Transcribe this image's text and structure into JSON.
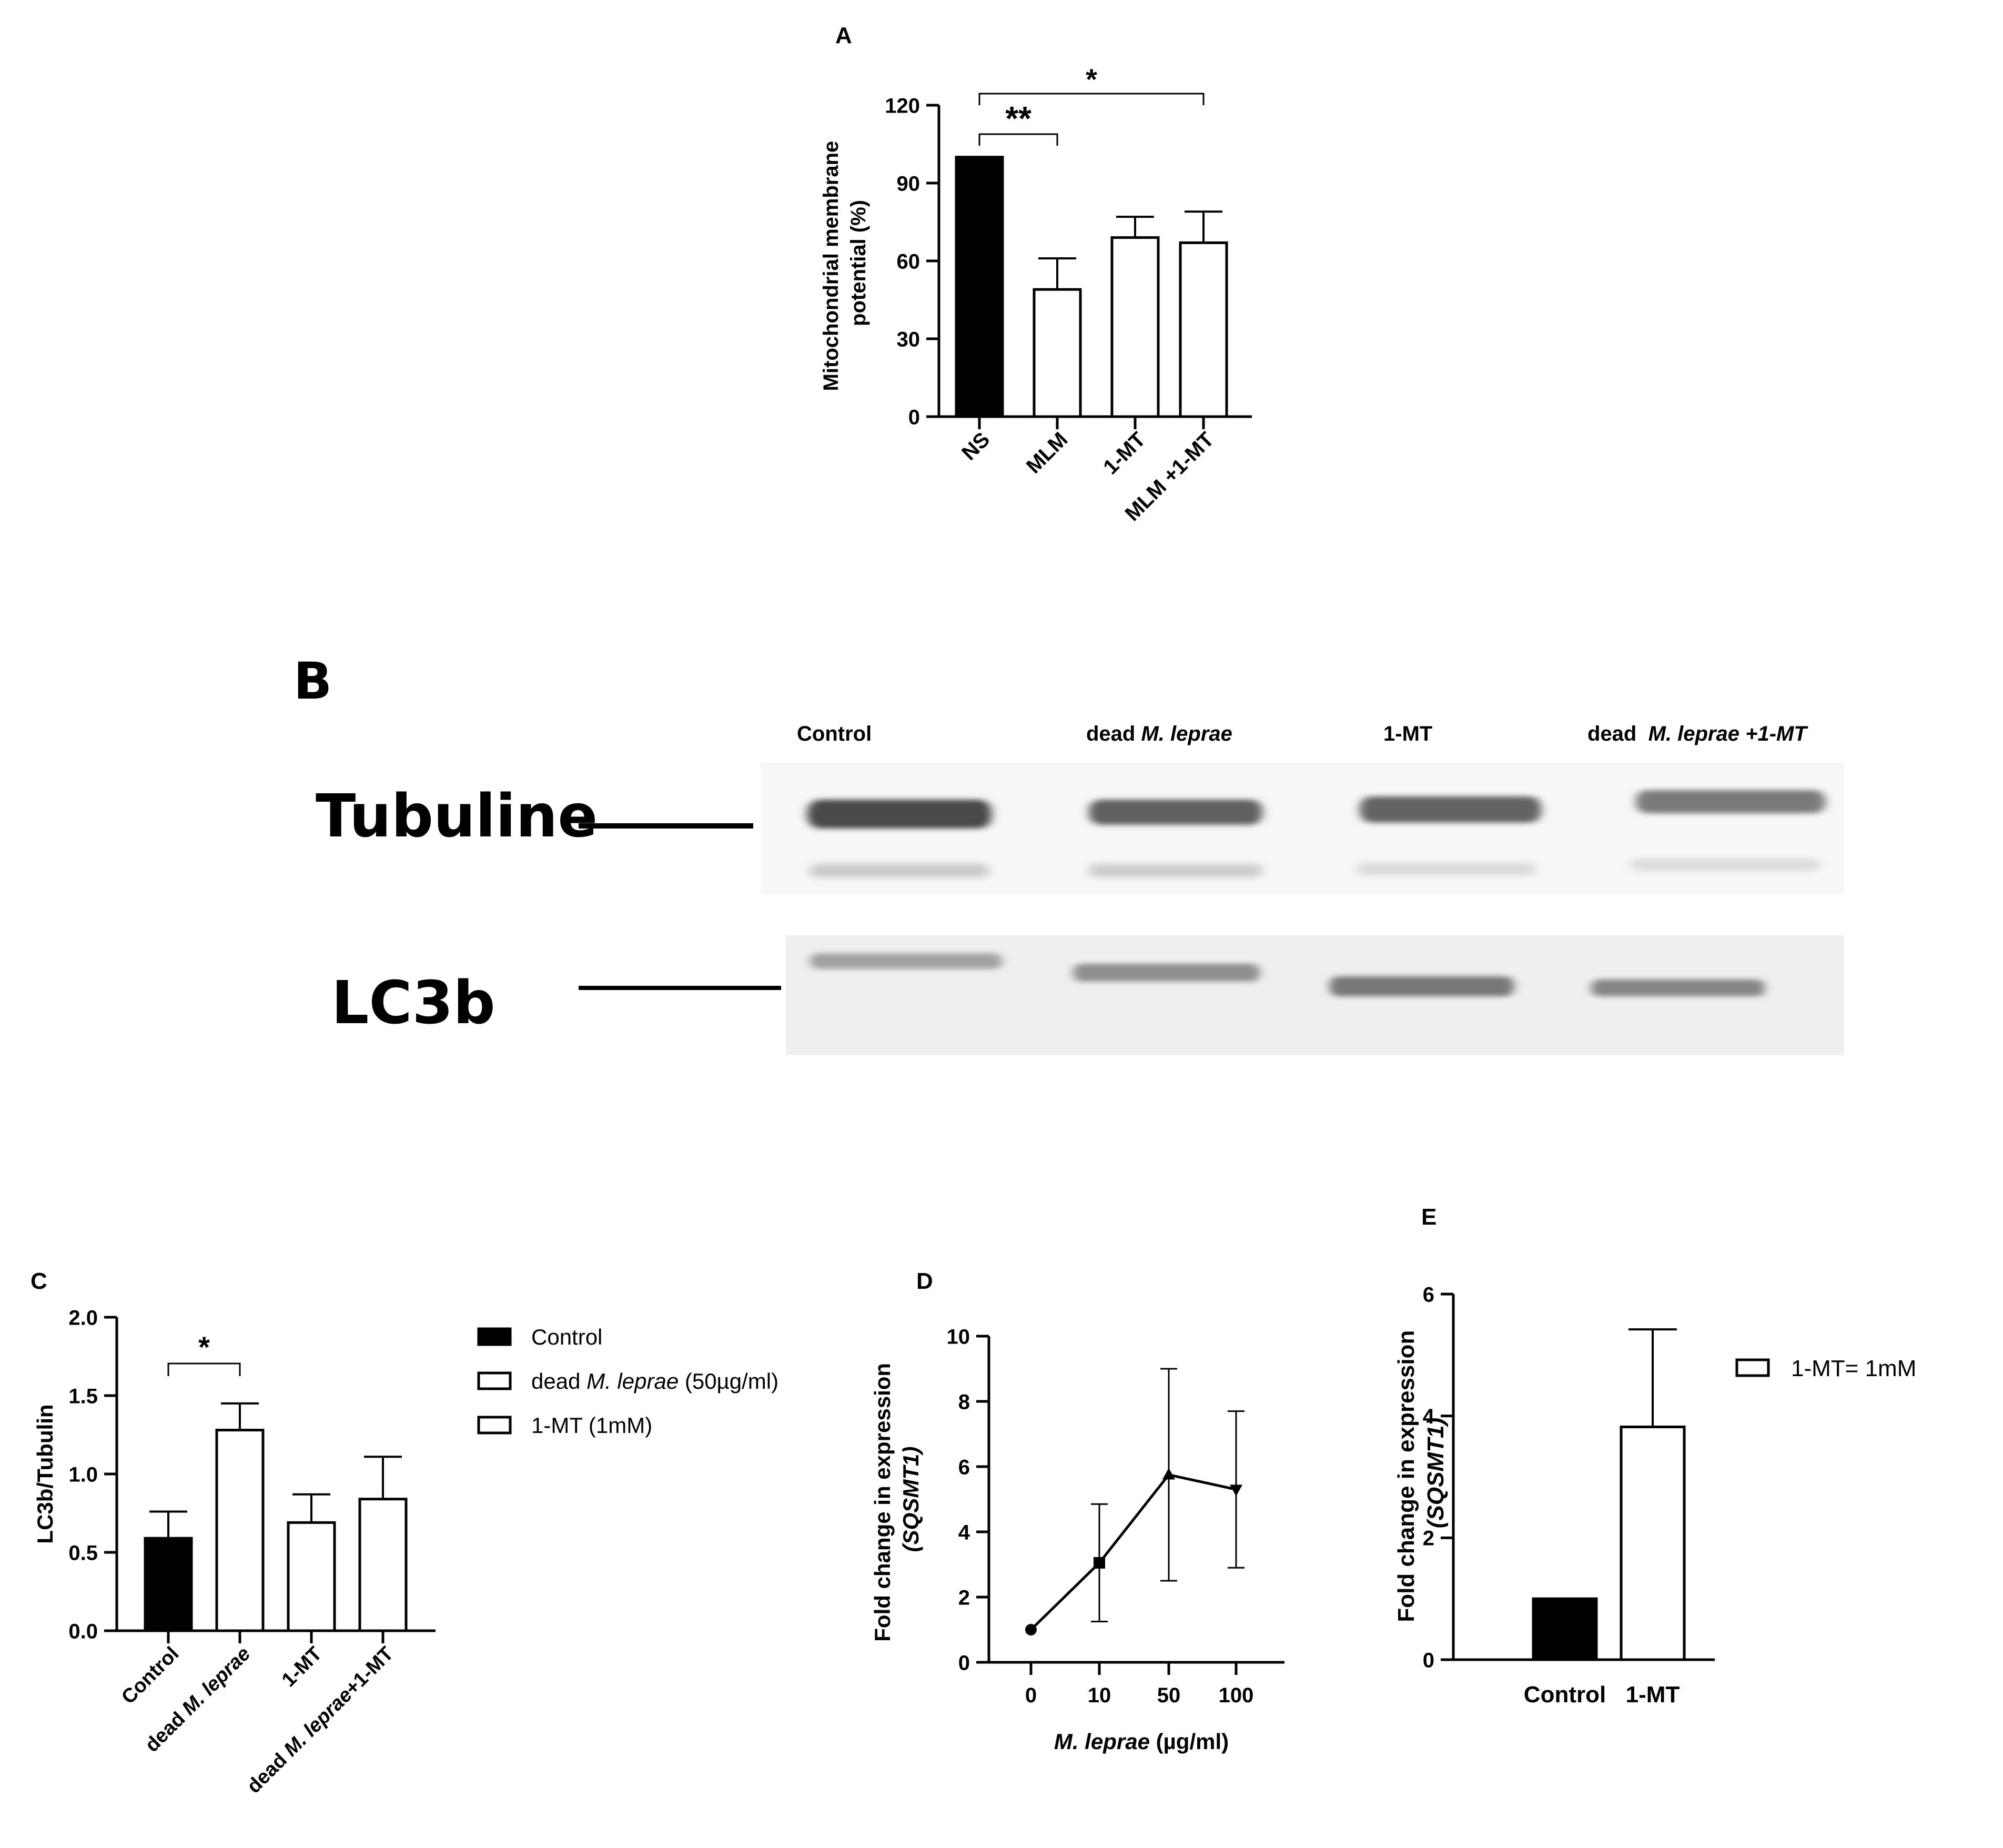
{
  "panel_a": {
    "letter": "A",
    "chart_data": {
      "type": "bar",
      "categories": [
        "NS",
        "MLM",
        "1-MT",
        "MLM +1-MT"
      ],
      "values": [
        100,
        49,
        69,
        67
      ],
      "errors": [
        0,
        12,
        8,
        12
      ],
      "bar_fill": [
        "#000000",
        "#ffffff",
        "#ffffff",
        "#ffffff"
      ],
      "ylabel_line1": "Mitochondrial membrane",
      "ylabel_line2": "potential (%)",
      "ylim": [
        0,
        120
      ],
      "yticks": [
        "0",
        "30",
        "60",
        "90",
        "120"
      ],
      "grid": false,
      "significance": [
        {
          "from": "NS",
          "to": "MLM",
          "label": "**"
        },
        {
          "from": "NS",
          "to": "MLM +1-MT",
          "label": "*"
        }
      ]
    }
  },
  "panel_b": {
    "letter": "B",
    "lanes": [
      {
        "plain": "Control",
        "italic": ""
      },
      {
        "plain": "dead ",
        "italic": "M. leprae"
      },
      {
        "plain": "1-MT",
        "italic": ""
      },
      {
        "plain": "dead  ",
        "italic": "M. leprae +1-MT"
      }
    ],
    "row_labels": [
      "Tubuline",
      "LC3b"
    ]
  },
  "panel_c": {
    "letter": "C",
    "chart_data": {
      "type": "bar",
      "categories": [
        "Control",
        "dead M. leprae",
        "1-MT",
        "dead M. leprae+1-MT"
      ],
      "values": [
        0.59,
        1.28,
        0.69,
        0.84
      ],
      "errors": [
        0.17,
        0.17,
        0.18,
        0.27
      ],
      "bar_fill": [
        "#000000",
        "#ffffff",
        "#ffffff",
        "#ffffff"
      ],
      "ylabel": "LC3b/Tubulin",
      "ylim": [
        0,
        2.0
      ],
      "yticks": [
        "0.0",
        "0.5",
        "1.0",
        "1.5",
        "2.0"
      ],
      "grid": false,
      "significance": [
        {
          "from": "Control",
          "to": "dead M. leprae",
          "label": "*"
        }
      ],
      "legend": [
        {
          "fill": "#000000",
          "pre": "Control",
          "italic": "",
          "post": ""
        },
        {
          "fill": "#ffffff",
          "pre": "dead ",
          "italic": "M. leprae",
          "post": " (50µg/ml)"
        },
        {
          "fill": "#ffffff",
          "pre": "1-MT (1mM)",
          "italic": "",
          "post": ""
        }
      ],
      "legend_position": "right"
    }
  },
  "panel_d": {
    "letter": "D",
    "chart_data": {
      "type": "line",
      "x": [
        "0",
        "10",
        "50",
        "100"
      ],
      "y": [
        1.0,
        3.05,
        5.75,
        5.3
      ],
      "errors": [
        0,
        1.8,
        3.25,
        2.4
      ],
      "markers": [
        "circle",
        "square",
        "triangle-up",
        "triangle-down"
      ],
      "ylabel_line1": "Fold change in expression",
      "ylabel_line2": "(SQSMT1)",
      "xlabel_italic": "M. leprae",
      "xlabel_rest": " (µg/ml)",
      "ylim": [
        0,
        10
      ],
      "yticks": [
        "0",
        "2",
        "4",
        "6",
        "8",
        "10"
      ],
      "grid": false
    }
  },
  "panel_e": {
    "letter": "E",
    "chart_data": {
      "type": "bar",
      "categories": [
        "Control",
        "1-MT"
      ],
      "values": [
        1.0,
        3.82
      ],
      "errors": [
        0,
        1.6
      ],
      "bar_fill": [
        "#000000",
        "#ffffff"
      ],
      "ylabel_line1": "Fold change in expression",
      "ylabel_line2": "(SQSMT1)",
      "ylim": [
        0,
        6
      ],
      "yticks": [
        "0",
        "2",
        "4",
        "6"
      ],
      "grid": false,
      "legend": [
        {
          "fill": "#ffffff",
          "label": "1-MT= 1mM"
        }
      ],
      "legend_position": "right"
    }
  }
}
